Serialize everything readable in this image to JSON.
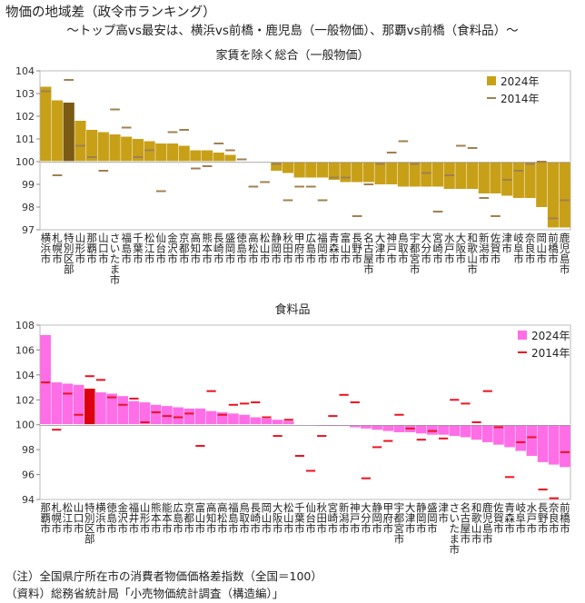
{
  "header": {
    "title": "物価の地域差（政令市ランキング）",
    "subtitle": "～トップ高vs最安は、横浜vs前橋・鹿児島（一般物価）、那覇vs前橋（食料品）～"
  },
  "notes": {
    "note": "（注）全国県庁所在市の消費者物価価格差指数（全国＝100）",
    "source": "（資料）総務省統計局「小売物価統計調査（構造編）」"
  },
  "chart_data": [
    {
      "type": "bar",
      "title": "家賃を除く総合（一般物価）",
      "ylim": [
        97,
        104
      ],
      "ticks": [
        97,
        98,
        99,
        100,
        101,
        102,
        103,
        104
      ],
      "baseline": 100,
      "grid": false,
      "legend_position": "top-right",
      "bar_color": "#c8a018",
      "highlight_color": "#7a5a14",
      "marker_color": "#a08050",
      "highlight": "特別区部",
      "categories": [
        "横浜市",
        "札幌市",
        "特別区部",
        "山形市",
        "那覇市",
        "山口市",
        "さいたま市",
        "福島市",
        "千葉市",
        "松江市",
        "仙台市",
        "金沢市",
        "京都市",
        "高知市",
        "熊本市",
        "長崎市",
        "盛岡市",
        "徳島市",
        "高松市",
        "松山市",
        "静岡市",
        "秋田市",
        "甲府市",
        "広島市",
        "福岡市",
        "青森市",
        "富山市",
        "長野市",
        "名古屋市",
        "大津市",
        "神戸市",
        "鳥取市",
        "宇都宮市",
        "大分市",
        "宮崎市",
        "水戸市",
        "大阪市",
        "和歌山市",
        "新潟市",
        "佐賀市",
        "津市",
        "岐阜市",
        "奈良市",
        "岡山市",
        "前橋市",
        "鹿児島市"
      ],
      "series": [
        {
          "name": "2024年",
          "type": "bar",
          "values": [
            103.3,
            102.7,
            102.6,
            101.8,
            101.4,
            101.3,
            101.2,
            101.1,
            101.0,
            100.9,
            100.8,
            100.8,
            100.7,
            100.5,
            100.5,
            100.4,
            100.3,
            100.0,
            100.0,
            100.0,
            99.6,
            99.5,
            99.3,
            99.3,
            99.3,
            99.2,
            99.1,
            99.1,
            99.1,
            99.0,
            99.0,
            98.9,
            98.9,
            98.9,
            98.9,
            98.8,
            98.8,
            98.8,
            98.6,
            98.6,
            98.5,
            98.4,
            98.4,
            98.0,
            97.1,
            97.1
          ]
        },
        {
          "name": "2014年",
          "type": "marker",
          "values": [
            103.1,
            99.4,
            103.6,
            100.7,
            100.2,
            99.6,
            102.3,
            101.5,
            100.2,
            100.5,
            98.7,
            101.3,
            101.4,
            99.7,
            99.8,
            100.8,
            100.5,
            100.1,
            98.9,
            99.1,
            99.9,
            98.3,
            98.9,
            98.9,
            98.3,
            99.3,
            99.3,
            97.6,
            99.0,
            99.9,
            100.4,
            100.9,
            99.9,
            99.5,
            97.8,
            99.4,
            100.7,
            100.6,
            98.4,
            97.6,
            99.2,
            99.6,
            99.9,
            100.0,
            97.5,
            98.3
          ]
        }
      ]
    },
    {
      "type": "bar",
      "title": "食料品",
      "ylim": [
        94,
        108
      ],
      "ticks": [
        94,
        96,
        98,
        100,
        102,
        104,
        106,
        108
      ],
      "baseline": 100,
      "grid": false,
      "legend_position": "top-right",
      "bar_color": "#ff6ee6",
      "highlight_color": "#dd0011",
      "marker_color": "#ee1122",
      "highlight": "特別区部",
      "categories": [
        "那覇市",
        "札幌市",
        "松江市",
        "山口市",
        "特別区部",
        "横浜市",
        "徳島市",
        "金沢市",
        "福井市",
        "山形市",
        "熊本市",
        "能本市",
        "広島市",
        "京都市",
        "富山市",
        "高知市",
        "高松市",
        "福島市",
        "鳥取市",
        "長崎市",
        "岡山市",
        "大阪市",
        "松山市",
        "千葉市",
        "仙台市",
        "秋田市",
        "宮崎市",
        "新潟市",
        "神戸市",
        "大分市",
        "静岡市",
        "甲府市",
        "宇都宮市",
        "大津市",
        "静岡市",
        "盛岡市",
        "津市",
        "さいたま市",
        "名古屋市",
        "和歌山市",
        "鹿児島市",
        "佐賀市",
        "青森市",
        "岐阜市",
        "水戸市",
        "長野市",
        "奈良市",
        "前橋市"
      ],
      "series": [
        {
          "name": "2024年",
          "type": "bar",
          "values": [
            107.2,
            103.4,
            103.3,
            103.2,
            102.9,
            102.6,
            102.5,
            102.3,
            101.9,
            101.8,
            101.6,
            101.5,
            101.4,
            101.3,
            101.3,
            101.1,
            101.0,
            100.9,
            100.8,
            100.6,
            100.5,
            100.4,
            100.3,
            100.0,
            100.0,
            99.9,
            99.9,
            99.9,
            99.8,
            99.7,
            99.6,
            99.5,
            99.4,
            99.4,
            99.3,
            99.2,
            99.2,
            99.1,
            99.0,
            98.8,
            98.6,
            98.4,
            98.2,
            97.9,
            97.5,
            97.0,
            96.8,
            96.6
          ]
        },
        {
          "name": "2014年",
          "type": "marker",
          "values": [
            103.4,
            99.6,
            102.5,
            100.8,
            103.9,
            103.6,
            102.2,
            101.6,
            102.1,
            100.2,
            101.0,
            100.7,
            100.6,
            100.9,
            98.3,
            102.7,
            100.8,
            101.6,
            101.7,
            101.8,
            100.6,
            99.1,
            100.4,
            97.5,
            96.3,
            99.1,
            100.7,
            102.4,
            101.8,
            95.7,
            98.2,
            98.7,
            100.8,
            99.7,
            98.8,
            99.5,
            98.9,
            102.0,
            101.7,
            100.2,
            102.7,
            99.8,
            95.8,
            98.6,
            99.0,
            94.8,
            94.1,
            97.8
          ]
        }
      ]
    }
  ]
}
